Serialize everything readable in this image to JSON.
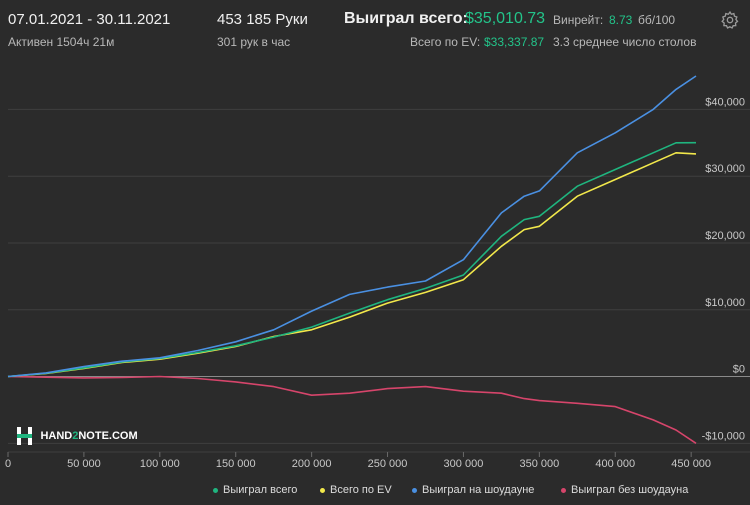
{
  "header": {
    "date_range": "07.01.2021 - 30.11.2021",
    "active": "Активен 1504ч 21м",
    "hands": "453 185 Руки",
    "hands_per_hour": "301 рук в час",
    "won_label": "Выиграл всего:",
    "won_value": "$35,010.73",
    "ev_label": "Всего по EV:",
    "ev_value": "$33,337.87",
    "winrate_label": "Винрейт:",
    "winrate_value": "8.73",
    "winrate_unit": "бб/100",
    "tables": "3.3 среднее число столов"
  },
  "logo": {
    "text_left": "HAND",
    "text_mid": "2",
    "text_right": "NOTE.COM"
  },
  "legend": [
    {
      "label": "Выиграл всего",
      "color": "#1fb57f"
    },
    {
      "label": "Всего по EV",
      "color": "#f2e84b"
    },
    {
      "label": "Выиграл на шоудауне",
      "color": "#4a90e2"
    },
    {
      "label": "Выиграл без шоудауна",
      "color": "#d6456b"
    }
  ],
  "chart_data": {
    "type": "line",
    "x_ticks": [
      0,
      50000,
      100000,
      150000,
      200000,
      250000,
      300000,
      350000,
      400000,
      450000
    ],
    "x_tick_labels": [
      "0",
      "50 000",
      "100 000",
      "150 000",
      "200 000",
      "250 000",
      "300 000",
      "350 000",
      "400 000",
      "450 000"
    ],
    "y_ticks": [
      -10000,
      0,
      10000,
      20000,
      30000,
      40000
    ],
    "y_tick_labels": [
      "-$10,000",
      "$0",
      "$10,000",
      "$20,000",
      "$30,000",
      "$40,000"
    ],
    "xlim": [
      0,
      453185
    ],
    "ylim": [
      -11000,
      48000
    ],
    "grid": true,
    "x": [
      0,
      25000,
      50000,
      75000,
      100000,
      125000,
      150000,
      175000,
      200000,
      225000,
      250000,
      275000,
      300000,
      325000,
      340000,
      350000,
      375000,
      400000,
      425000,
      440000,
      453185
    ],
    "series": [
      {
        "name": "Выиграл всего",
        "color": "#1fb57f",
        "values": [
          0,
          500,
          1300,
          2200,
          2700,
          3600,
          4600,
          5900,
          7400,
          9500,
          11500,
          13200,
          15200,
          21000,
          23500,
          24000,
          28500,
          31000,
          33500,
          35000,
          35010
        ]
      },
      {
        "name": "Всего по EV",
        "color": "#f2e84b",
        "values": [
          0,
          450,
          1200,
          2100,
          2600,
          3500,
          4500,
          6000,
          7000,
          8900,
          11000,
          12600,
          14500,
          19500,
          22000,
          22500,
          27000,
          29500,
          32000,
          33500,
          33337
        ]
      },
      {
        "name": "Выиграл на шоудауне",
        "color": "#4a90e2",
        "values": [
          0,
          550,
          1500,
          2300,
          2800,
          3900,
          5200,
          7000,
          9800,
          12300,
          13400,
          14300,
          17500,
          24500,
          27000,
          27800,
          33500,
          36500,
          40000,
          43000,
          45000
        ]
      },
      {
        "name": "Выиграл без шоудауна",
        "color": "#d6456b",
        "values": [
          0,
          -100,
          -200,
          -150,
          0,
          -300,
          -800,
          -1500,
          -2800,
          -2500,
          -1800,
          -1500,
          -2200,
          -2500,
          -3300,
          -3600,
          -4000,
          -4500,
          -6500,
          -8000,
          -10000
        ]
      }
    ]
  }
}
